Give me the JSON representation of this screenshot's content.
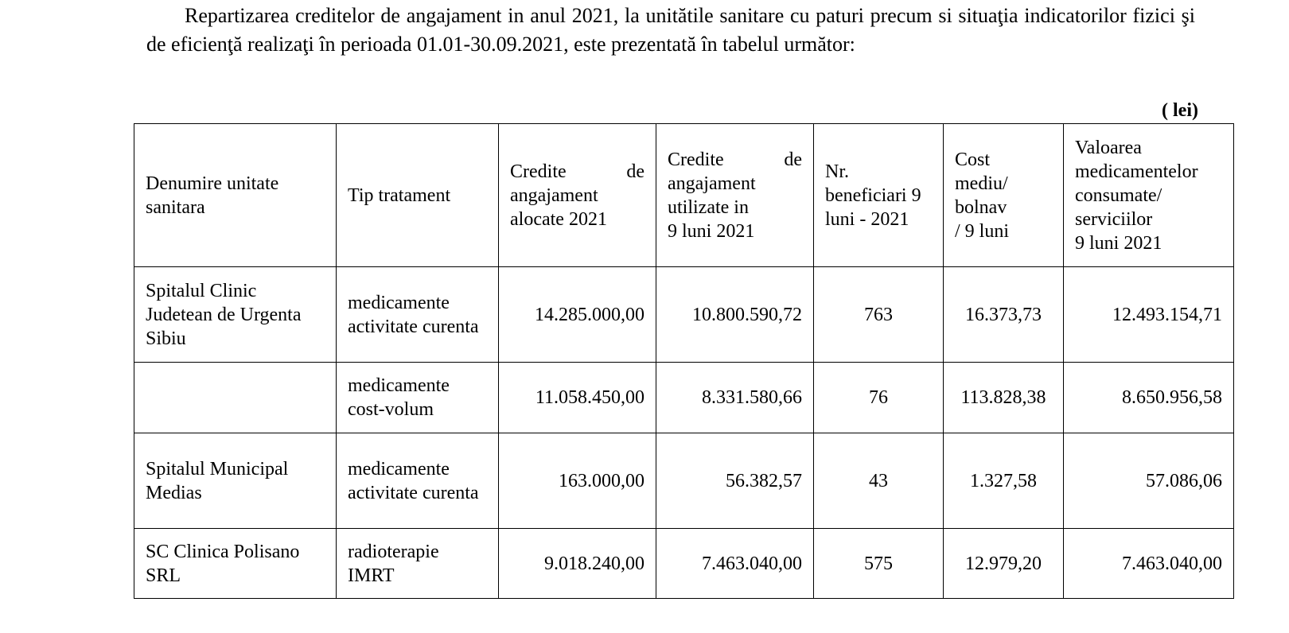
{
  "intro": {
    "text": "Repartizarea creditelor de angajament in anul 2021, la unitătile sanitare cu paturi precum si situaţia indicatorilor fizici şi de eficienţă realizaţi în perioada 01.01-30.09.2021,  este prezentată în tabelul următor:"
  },
  "unit_note": "( lei)",
  "table": {
    "headers": [
      "Denumire unitate sanitara",
      "Tip tratament",
      "Credite de angajament alocate 2021",
      "Credite de angajament utilizate in 9 luni 2021",
      "Nr. beneficiari 9 luni - 2021",
      "Cost mediu/ bolnav / 9 luni",
      "Valoarea medicamentelor consumate/ serviciilor 9 luni 2021"
    ],
    "header_lines": {
      "credite_alocate": [
        "Credite de",
        "angajament",
        "alocate 2021"
      ],
      "credite_utilizate": [
        "Credite de",
        "angajament",
        "utilizate in",
        "9 luni 2021"
      ],
      "beneficiari": [
        "Nr.",
        "beneficiari 9",
        "luni - 2021"
      ],
      "cost": [
        "Cost",
        "mediu/",
        "bolnav",
        "/ 9 luni"
      ],
      "valoare": [
        "Valoarea",
        "medicamentelor",
        "consumate/",
        "serviciilor",
        "9 luni 2021"
      ]
    },
    "rows": [
      {
        "unit": "Spitalul Clinic Judetean de Urgenta Sibiu",
        "tratament": "medicamente activitate curenta",
        "alocate": "14.285.000,00",
        "utilizate": "10.800.590,72",
        "beneficiari": "763",
        "cost": "16.373,73",
        "valoare": "12.493.154,71"
      },
      {
        "unit": "",
        "tratament": "medicamente cost-volum",
        "alocate": "11.058.450,00",
        "utilizate": "8.331.580,66",
        "beneficiari": "76",
        "cost": "113.828,38",
        "valoare": "8.650.956,58"
      },
      {
        "unit": "Spitalul Municipal Medias",
        "tratament": "medicamente activitate curenta",
        "alocate": "163.000,00",
        "utilizate": "56.382,57",
        "beneficiari": "43",
        "cost": "1.327,58",
        "valoare": "57.086,06"
      },
      {
        "unit": "SC Clinica Polisano SRL",
        "tratament": "radioterapie IMRT",
        "alocate": "9.018.240,00",
        "utilizate": "7.463.040,00",
        "beneficiari": "575",
        "cost": "12.979,20",
        "valoare": "7.463.040,00"
      }
    ]
  }
}
